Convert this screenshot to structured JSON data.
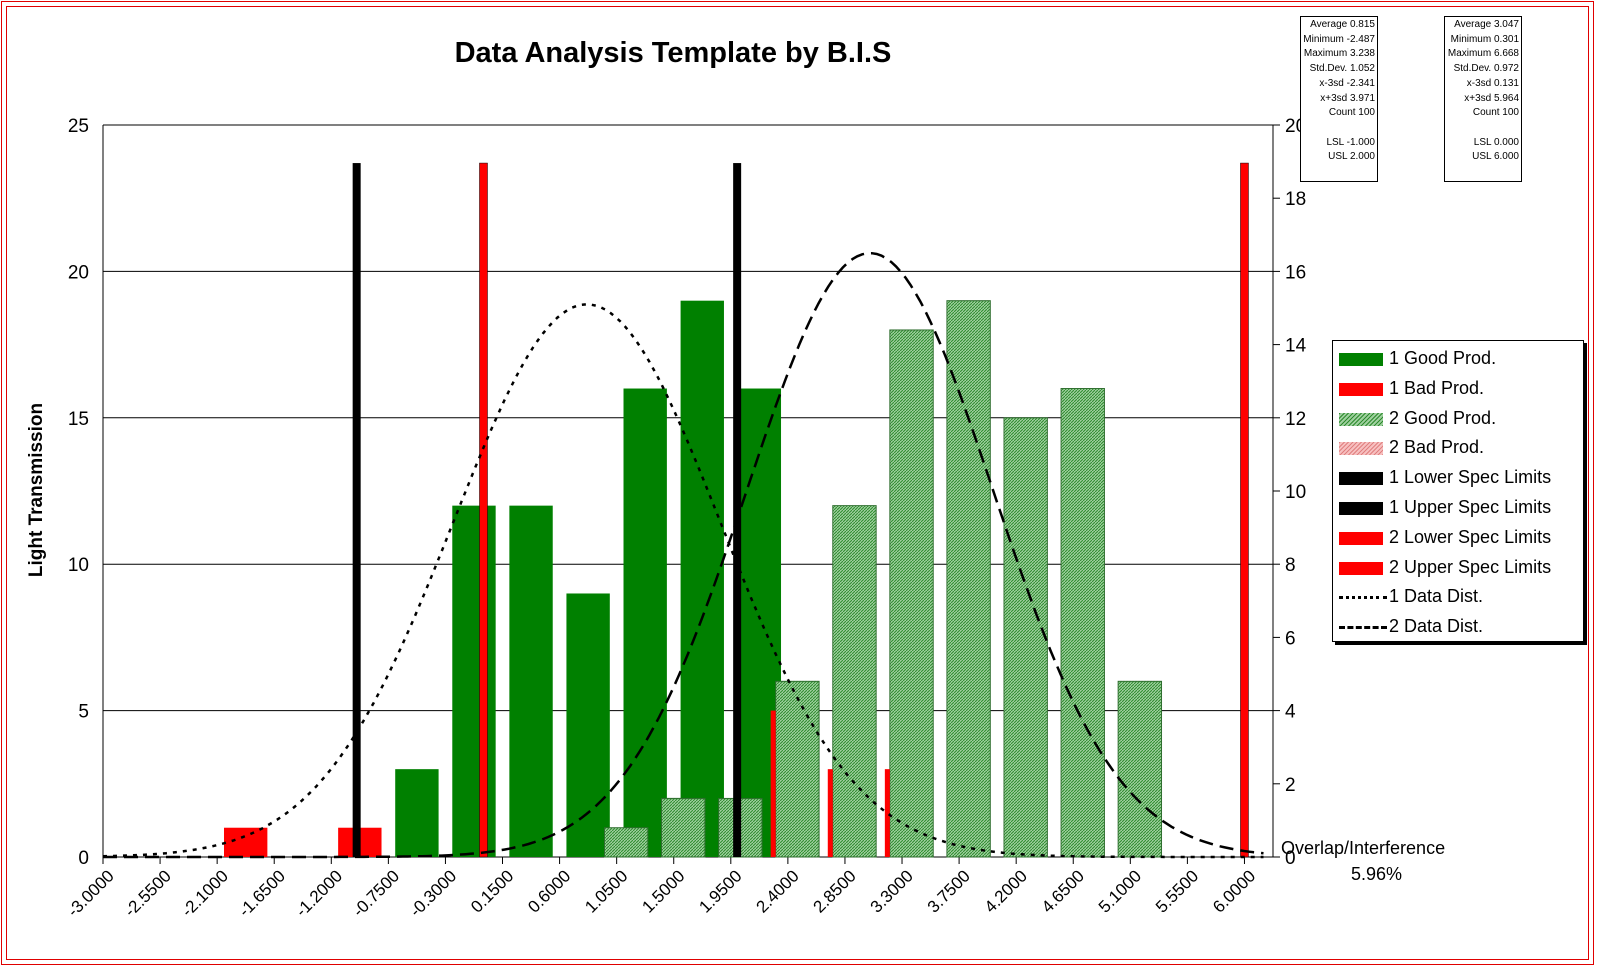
{
  "chart_data": {
    "type": "bar",
    "title": "Data Analysis Template by B.I.S",
    "ylabel": "Light Transmission",
    "ylim": [
      0,
      25
    ],
    "y2lim": [
      0,
      20
    ],
    "yticks": [
      0,
      5,
      10,
      15,
      20,
      25
    ],
    "y2ticks": [
      0,
      2,
      4,
      6,
      8,
      10,
      12,
      14,
      16,
      18,
      20
    ],
    "xlim": [
      -3.0,
      6.225
    ],
    "xticks": [
      "-3.0000",
      "-2.5500",
      "-2.1000",
      "-1.6500",
      "-1.2000",
      "-0.7500",
      "-0.3000",
      "0.1500",
      "0.6000",
      "1.0500",
      "1.5000",
      "1.9500",
      "2.4000",
      "2.8500",
      "3.3000",
      "3.7500",
      "4.2000",
      "4.6500",
      "5.1000",
      "5.5500",
      "6.0000"
    ],
    "bin_width": 0.45,
    "grid": "horizontal",
    "series": [
      {
        "name": "1 Good Prod.",
        "axis": "left",
        "color": "#008000",
        "x": [
          -0.525,
          -0.075,
          0.375,
          0.825,
          1.275,
          1.725,
          2.175
        ],
        "values": [
          3,
          12,
          12,
          9,
          16,
          19,
          16
        ]
      },
      {
        "name": "1 Bad Prod.",
        "axis": "left",
        "color": "#ff0000",
        "x": [
          -1.875,
          -0.975
        ],
        "values": [
          1,
          1
        ]
      },
      {
        "name": "2 Good Prod.",
        "axis": "right",
        "color": "#7fbf7f",
        "hatch": true,
        "x": [
          1.125,
          1.575,
          2.025,
          2.475,
          2.925,
          3.375,
          3.825,
          4.275,
          4.725,
          5.175,
          1.575
        ],
        "values": [
          0.8,
          1.6,
          1.6,
          4.8,
          9.6,
          14.4,
          15.2,
          12.0,
          12.8,
          4.8,
          1.6
        ]
      },
      {
        "name": "2 Bad Prod.",
        "axis": "right",
        "color": "#ff0000",
        "x": [
          2.475,
          2.925,
          3.375
        ],
        "values": [
          4.0,
          2.4,
          2.4
        ]
      },
      {
        "name": "1 Lower Spec Limits",
        "axis": "left",
        "color": "#000000",
        "x": [
          -1.0
        ],
        "values": [
          23.7
        ]
      },
      {
        "name": "1 Upper Spec Limits",
        "axis": "left",
        "color": "#000000",
        "x": [
          2.0
        ],
        "values": [
          23.7
        ]
      },
      {
        "name": "2 Lower Spec Limits",
        "axis": "left",
        "color": "#ff0000",
        "x": [
          0.0
        ],
        "values": [
          23.7
        ]
      },
      {
        "name": "2 Upper Spec Limits",
        "axis": "left",
        "color": "#ff0000",
        "x": [
          6.0
        ],
        "values": [
          23.7
        ]
      },
      {
        "name": "1 Data Dist.",
        "axis": "right",
        "style": "dotted",
        "mean": 0.815,
        "sd": 1.052,
        "peak": 15.1
      },
      {
        "name": "2 Data Dist.",
        "axis": "right",
        "style": "dashed",
        "mean": 3.047,
        "sd": 0.972,
        "peak": 16.5
      }
    ],
    "stats": [
      [
        "Average 0.815",
        "Minimum -2.487",
        "Maximum 3.238",
        "Std.Dev. 1.052",
        "x-3sd -2.341",
        "x+3sd 3.971",
        "Count 100",
        "",
        "LSL -1.000",
        "USL 2.000"
      ],
      [
        "Average 3.047",
        "Minimum 0.301",
        "Maximum 6.668",
        "Std.Dev. 0.972",
        "x-3sd 0.131",
        "x+3sd 5.964",
        "Count 100",
        "",
        "LSL 0.000",
        "USL 6.000"
      ]
    ],
    "legend_position": "right",
    "overlap_label": "Overlap/Interference",
    "overlap_value": "5.96%"
  }
}
